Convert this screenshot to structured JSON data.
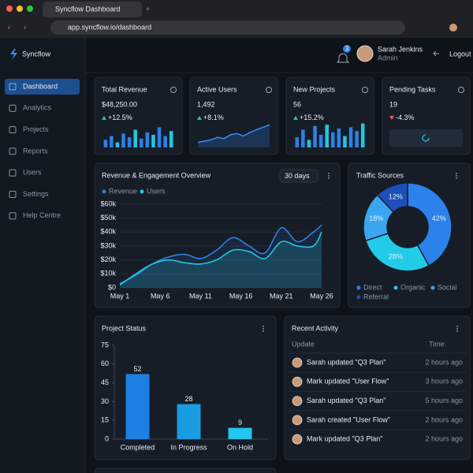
{
  "browser": {
    "tab_title": "Syncflow Dashboard",
    "url": "app.syncflow.io/dashboard"
  },
  "sidebar": {
    "brand": "Syncflow",
    "active": 0,
    "nav": [
      "Dashboard",
      "Analytics",
      "Projects",
      "Reports",
      "Users",
      "Settings",
      "Help Centre"
    ]
  },
  "header": {
    "notifications": "3",
    "user": "Sarah Jenkins",
    "role": "Admin",
    "logout": "Logout"
  },
  "kpis": [
    {
      "title": "Total Revenue",
      "value": "$48,250.00",
      "change": "+12.5%",
      "trend": "up",
      "spark": {
        "type": "bar",
        "ylim": [
          0,
          100
        ],
        "values": [
          30,
          45,
          20,
          55,
          40,
          70,
          35,
          60,
          50,
          80,
          45,
          65
        ]
      }
    },
    {
      "title": "Active Users",
      "value": "1,492",
      "change": "+8.1%",
      "trend": "up",
      "spark": {
        "type": "area",
        "ylim": [
          0,
          100
        ],
        "values": [
          20,
          25,
          30,
          40,
          35,
          50,
          55,
          45,
          60,
          70,
          80,
          90
        ]
      }
    },
    {
      "title": "New Projects",
      "value": "56",
      "change": "+15.2%",
      "trend": "up",
      "spark": {
        "type": "bar",
        "ylim": [
          0,
          100
        ],
        "values": [
          40,
          70,
          30,
          85,
          50,
          90,
          60,
          75,
          45,
          80,
          65,
          95
        ]
      }
    },
    {
      "title": "Pending Tasks",
      "value": "19",
      "change": "-4.3%",
      "trend": "down"
    }
  ],
  "chart_data": [
    {
      "type": "line",
      "title": "Revenue & Engagement Overview",
      "range": "30 days",
      "x": [
        1,
        3,
        5,
        7,
        9,
        11,
        13,
        15,
        17,
        19,
        21,
        23,
        25,
        26
      ],
      "xlim": [
        1,
        26
      ],
      "xticks": [
        {
          "value": 1,
          "label": "May 1"
        },
        {
          "value": 6,
          "label": "May 6"
        },
        {
          "value": 11,
          "label": "May 11"
        },
        {
          "value": 16,
          "label": "May 16"
        },
        {
          "value": 21,
          "label": "May 21"
        },
        {
          "value": 26,
          "label": "May 26"
        }
      ],
      "ylim": [
        0,
        60000
      ],
      "yticks": [
        {
          "value": 0,
          "label": "$0"
        },
        {
          "value": 10000,
          "label": "$10k"
        },
        {
          "value": 20000,
          "label": "$20k"
        },
        {
          "value": 30000,
          "label": "$30k"
        },
        {
          "value": 40000,
          "label": "$40k"
        },
        {
          "value": 50000,
          "label": "$50k"
        },
        {
          "value": 60000,
          "label": "$60k"
        }
      ],
      "grid": true,
      "series": [
        {
          "name": "Revenue",
          "color": "#2f7fe6",
          "values": [
            3000,
            9000,
            17000,
            22000,
            24000,
            21000,
            27000,
            36000,
            30000,
            25000,
            43000,
            33000,
            40000,
            45000
          ]
        },
        {
          "name": "Users",
          "color": "#22c6e0",
          "values": [
            2000,
            10000,
            17000,
            20000,
            18000,
            17000,
            20000,
            27000,
            26000,
            21000,
            33000,
            30000,
            30000,
            40000
          ]
        }
      ]
    },
    {
      "type": "pie",
      "title": "Traffic Sources",
      "categories": [
        "Direct",
        "Organic",
        "Social",
        "Referral"
      ],
      "values": [
        42,
        28,
        18,
        12
      ],
      "value_labels": [
        "42%",
        "28%",
        "18%",
        "12%"
      ],
      "colors": [
        "#2b82ea",
        "#22cbe8",
        "#3aa6f0",
        "#1d4fb8"
      ]
    },
    {
      "type": "bar",
      "title": "Project Status",
      "categories": [
        "Completed",
        "In Progress",
        "On Hold"
      ],
      "values": [
        52,
        28,
        9
      ],
      "ylim": [
        0,
        75
      ],
      "yticks": [
        0,
        15,
        30,
        45,
        60,
        75
      ],
      "colors": [
        "#1e7fe4",
        "#1a9de0",
        "#22c6ee"
      ]
    }
  ],
  "activity": {
    "title": "Recent Activity",
    "columns": [
      "Update",
      "Time"
    ],
    "rows": [
      [
        "Sarah updated \"Q3 Plan\"",
        "2 hours ago"
      ],
      [
        "Mark updated \"User Flow\"",
        "3 hours ago"
      ],
      [
        "Sarah updated \"Q3 Plan\"",
        "5 hours ago"
      ],
      [
        "Sarah created \"User Flow\"",
        "2 hours ago"
      ],
      [
        "Mark updated \"Q3 Plan\"",
        "2 hours ago"
      ]
    ]
  }
}
